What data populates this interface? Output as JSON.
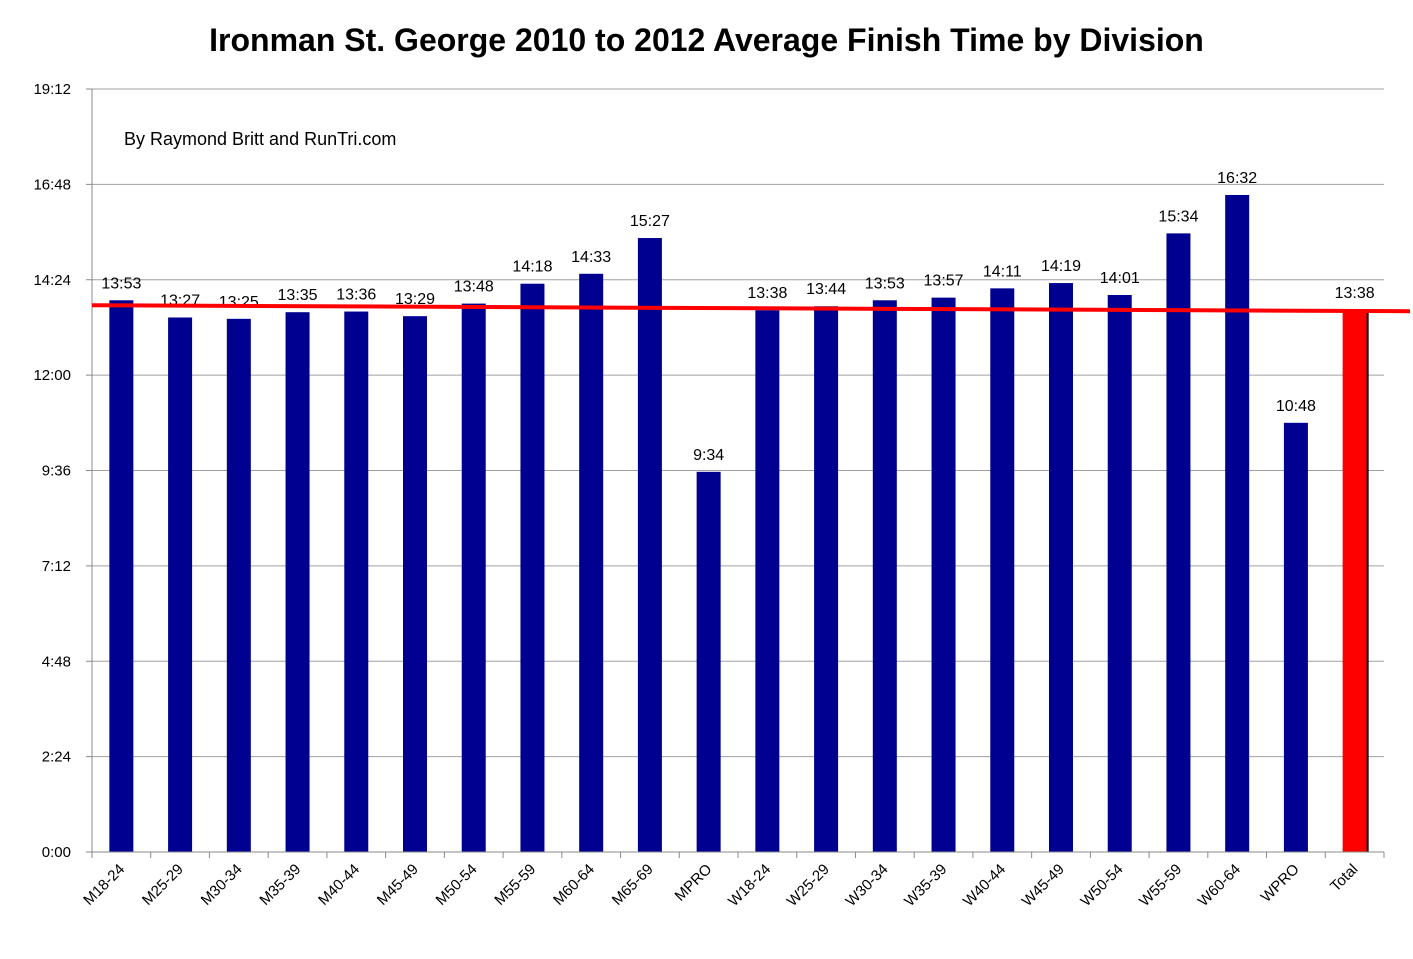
{
  "chart_data": {
    "type": "bar",
    "title": "Ironman St. George 2010 to 2012 Average Finish Time by Division",
    "annotation": "By Raymond Britt and RunTri.com",
    "categories": [
      "M18-24",
      "M25-29",
      "M30-34",
      "M35-39",
      "M40-44",
      "M45-49",
      "M50-54",
      "M55-59",
      "M60-64",
      "M65-69",
      "MPRO",
      "W18-24",
      "W25-29",
      "W30-34",
      "W35-39",
      "W40-44",
      "W45-49",
      "W50-54",
      "W55-59",
      "W60-64",
      "WPRO",
      "Total"
    ],
    "series": [
      {
        "values_minutes": [
          833,
          807,
          805,
          815,
          816,
          809,
          828,
          858,
          873,
          927,
          574,
          818,
          824,
          833,
          837,
          851,
          859,
          841,
          934,
          992,
          648,
          818
        ],
        "labels": [
          "13:53",
          "13:27",
          "13:25",
          "13:35",
          "13:36",
          "13:29",
          "13:48",
          "14:18",
          "14:33",
          "15:27",
          "9:34",
          "13:38",
          "13:44",
          "13:53",
          "13:57",
          "14:11",
          "14:19",
          "14:01",
          "15:34",
          "16:32",
          "10:48",
          "13:38"
        ]
      }
    ],
    "reference_line": {
      "value_minutes": 818
    },
    "ylim_minutes": [
      0,
      1152
    ],
    "yticks": [
      "0:00",
      "2:24",
      "4:48",
      "7:12",
      "9:36",
      "12:00",
      "14:24",
      "16:48",
      "19:12"
    ],
    "grid": true,
    "colors": {
      "bar": "#000090",
      "highlight_bar": "#ff0000",
      "reference_line": "#ff0000",
      "grid": "#a0a0a0",
      "axis": "#888888"
    }
  }
}
